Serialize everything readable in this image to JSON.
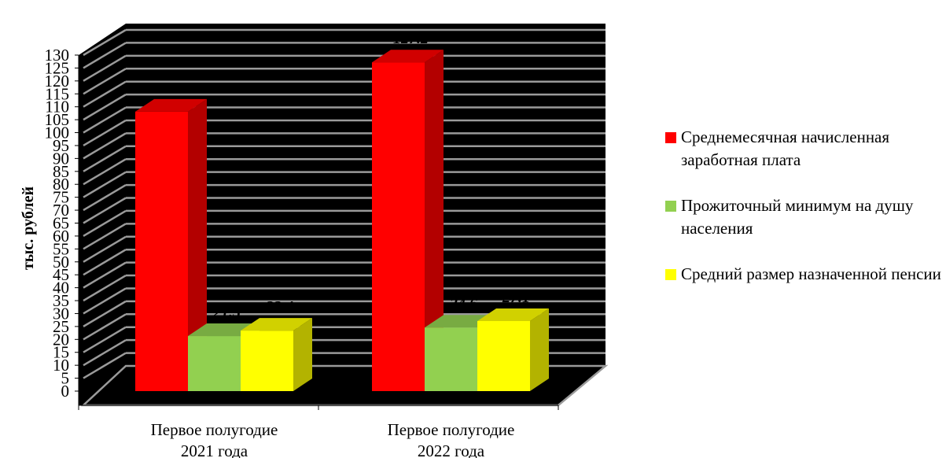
{
  "chart_data": {
    "type": "bar",
    "title": "",
    "ylabel": "тыс. рублей",
    "xlabel": "",
    "ylim": [
      0,
      130
    ],
    "ytick_step": 5,
    "categories": [
      "Первое полугодие 2021 года",
      "Первое полугодие 2022 года"
    ],
    "series": [
      {
        "name": "Среднемесячная начисленная заработная плата",
        "values": [
          108.1,
          127.2
        ],
        "labels": [
          "108.1",
          "127.2"
        ],
        "color": "#ff0000"
      },
      {
        "name": "Прожиточный минимум на душу населения",
        "values": [
          21.3,
          24.6
        ],
        "labels": [
          "21.3",
          "24.6"
        ],
        "color": "#92d050"
      },
      {
        "name": "Средний размер назначенной пенсии",
        "values": [
          23.4,
          27.1
        ],
        "labels": [
          "23.4",
          "27.1"
        ],
        "color": "#ffff00"
      }
    ],
    "legend_position": "right",
    "grid": true
  }
}
